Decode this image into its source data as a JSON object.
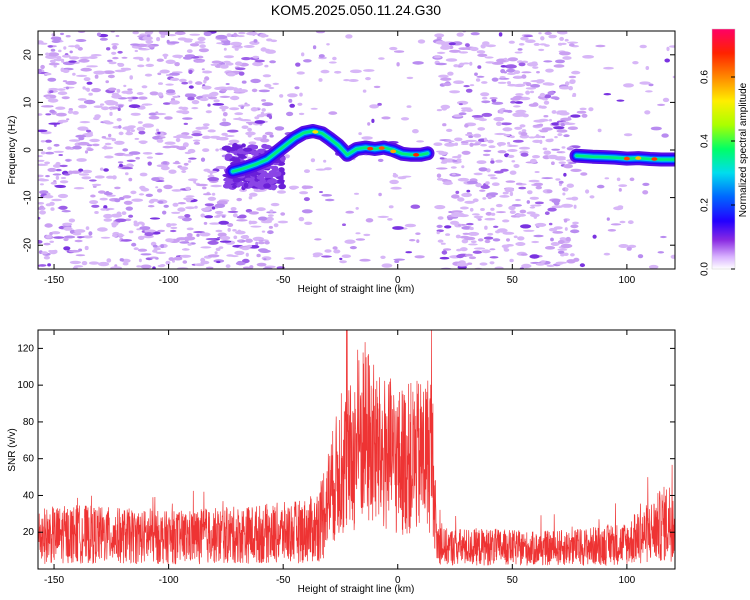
{
  "figure": {
    "title": "KOM5.2025.050.11.24.G30"
  },
  "colorbar": {
    "label": "Normalized spectral amplitude",
    "ticks": [
      "0.0",
      "0.2",
      "0.4",
      "0.6"
    ],
    "range": [
      0.0,
      0.75
    ]
  },
  "chart_data": [
    {
      "type": "heatmap",
      "xlabel": "Height of straight line (km)",
      "ylabel": "Frequency (Hz)",
      "xlim": [
        -157,
        121
      ],
      "ylim": [
        -25,
        25
      ],
      "xticks": [
        -150,
        -100,
        -50,
        0,
        50,
        100
      ],
      "yticks": [
        -20,
        -10,
        0,
        10,
        20
      ],
      "gap_no_data_km": [
        13,
        15
      ],
      "ridge": {
        "x": [
          -72,
          -68,
          -62,
          -57,
          -53,
          -49,
          -45,
          -41,
          -37,
          -33,
          -30,
          -26,
          -22,
          -18,
          -14,
          -10,
          -6,
          -2,
          2,
          6,
          10,
          13
        ],
        "y": [
          -4.5,
          -4,
          -3,
          -2,
          -0.5,
          1,
          2.5,
          3.6,
          4,
          3.5,
          2.5,
          1,
          -1,
          0.2,
          0.5,
          0.2,
          0.5,
          0,
          -0.8,
          -1,
          -1,
          -0.7
        ]
      },
      "ridge2": {
        "x": [
          78,
          85,
          90,
          95,
          100,
          105,
          110,
          115,
          121
        ],
        "y": [
          -1.2,
          -1.4,
          -1.5,
          -1.6,
          -1.8,
          -1.7,
          -1.9,
          -2,
          -2
        ]
      }
    },
    {
      "type": "line",
      "xlabel": "Height of straight line (km)",
      "ylabel": "SNR (v/v)",
      "xlim": [
        -157,
        121
      ],
      "ylim": [
        0,
        130
      ],
      "xticks": [
        -150,
        -100,
        -50,
        0,
        50,
        100
      ],
      "yticks": [
        20,
        40,
        60,
        80,
        100,
        120
      ],
      "color": "#ee3333",
      "series": [
        {
          "x": [
            -157,
            -140,
            -120,
            -100,
            -80,
            -60,
            -45,
            -35,
            -30,
            -25,
            -20,
            -15,
            -12,
            -8,
            -4,
            0,
            4,
            8,
            12,
            15,
            17,
            20,
            40,
            60,
            80,
            100,
            110,
            121
          ],
          "y": [
            18,
            19,
            18,
            17,
            18,
            19,
            20,
            22,
            40,
            55,
            60,
            75,
            70,
            62,
            62,
            58,
            60,
            60,
            62,
            65,
            15,
            12,
            12,
            11,
            12,
            14,
            20,
            28
          ]
        }
      ]
    }
  ]
}
